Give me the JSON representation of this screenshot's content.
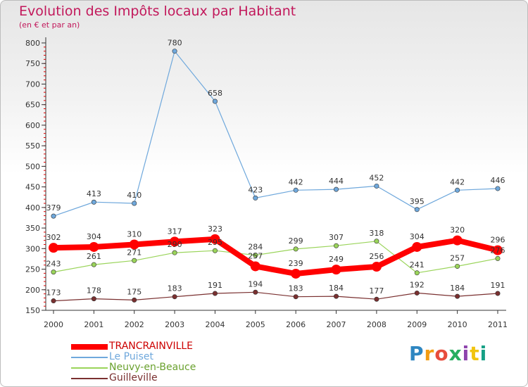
{
  "title": "Evolution des Impôts locaux par Habitant",
  "subtitle": "(en € et par an)",
  "brand": {
    "letters": [
      "P",
      "r",
      "o",
      "x",
      "i",
      "t",
      "i"
    ],
    "colors": [
      "#2e86c1",
      "#f39c12",
      "#e74c3c",
      "#27ae60",
      "#8e44ad",
      "#f1c40f",
      "#16a085"
    ]
  },
  "chart_data": {
    "type": "line",
    "title": "Evolution des Impôts locaux par Habitant",
    "subtitle": "(en € et par an)",
    "x": [
      "2000",
      "2001",
      "2002",
      "2003",
      "2004",
      "2005",
      "2006",
      "2007",
      "2008",
      "2009",
      "2010",
      "2011"
    ],
    "ylim": [
      150,
      800
    ],
    "yticks": [
      "150",
      "200",
      "250",
      "300",
      "350",
      "400",
      "450",
      "500",
      "550",
      "600",
      "650",
      "700",
      "750",
      "800"
    ],
    "series": [
      {
        "name": "TRANCRAINVILLE",
        "color": "#ff0000",
        "values": [
          302,
          304,
          310,
          317,
          323,
          257,
          239,
          249,
          256,
          304,
          320,
          296
        ]
      },
      {
        "name": "Le Puiset",
        "color": "#6fa8dc",
        "values": [
          379,
          413,
          410,
          780,
          658,
          423,
          442,
          444,
          452,
          395,
          442,
          446
        ]
      },
      {
        "name": "Neuvy-en-Beauce",
        "color": "#9ad45a",
        "values": [
          243,
          261,
          271,
          290,
          295,
          284,
          299,
          307,
          318,
          241,
          257,
          276
        ]
      },
      {
        "name": "Guilleville",
        "color": "#7a3030",
        "values": [
          173,
          178,
          175,
          183,
          191,
          194,
          183,
          184,
          177,
          192,
          184,
          191
        ]
      }
    ],
    "value_labels": [
      [
        "302",
        "304",
        "310",
        "317",
        "323",
        "257",
        "239",
        "249",
        "256",
        "304",
        "320",
        "296"
      ],
      [
        "379",
        "413",
        "410",
        "780",
        "658",
        "423",
        "442",
        "444",
        "452",
        "395",
        "442",
        "446"
      ],
      [
        "243",
        "261",
        "271",
        "290",
        "295",
        "284",
        "299",
        "307",
        "318",
        "241",
        "257",
        "276"
      ],
      [
        "173",
        "178",
        "175",
        "183",
        "191",
        "194",
        "183",
        "184",
        "177",
        "192",
        "184",
        "191"
      ]
    ],
    "legend": [
      "TRANCRAINVILLE",
      "Le Puiset",
      "Neuvy-en-Beauce",
      "Guilleville"
    ],
    "grid": false
  }
}
